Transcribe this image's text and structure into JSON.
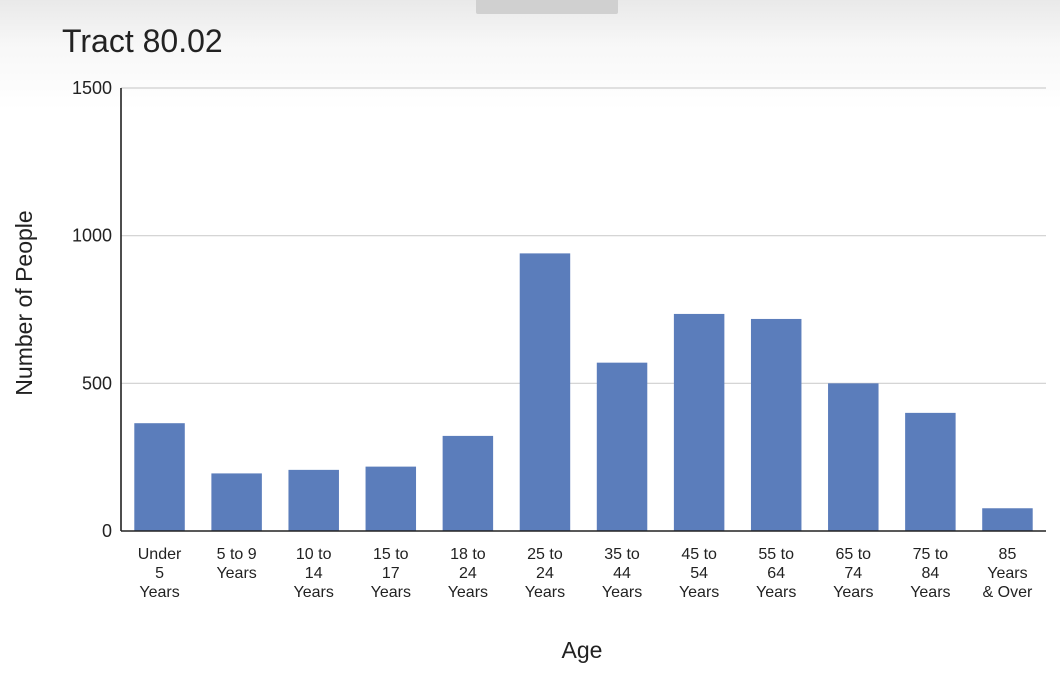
{
  "chart_data": {
    "type": "bar",
    "title": "Tract 80.02",
    "xlabel": "Age",
    "ylabel": "Number of People",
    "ylim": [
      0,
      1500
    ],
    "yticks": [
      0,
      500,
      1000,
      1500
    ],
    "grid": true,
    "bar_color": "#5b7dbb",
    "categories": [
      "Under 5 Years",
      "5 to 9 Years",
      "10 to 14 Years",
      "15 to 17 Years",
      "18 to 24 Years",
      "25 to 24 Years",
      "35 to 44 Years",
      "45 to 54 Years",
      "55 to 64 Years",
      "65 to 74 Years",
      "75 to 84 Years",
      "85 Years & Over"
    ],
    "category_lines": [
      [
        "Under",
        "5",
        "Years"
      ],
      [
        "5 to 9",
        "Years"
      ],
      [
        "10 to",
        "14",
        "Years"
      ],
      [
        "15 to",
        "17",
        "Years"
      ],
      [
        "18 to",
        "24",
        "Years"
      ],
      [
        "25 to",
        "24",
        "Years"
      ],
      [
        "35 to",
        "44",
        "Years"
      ],
      [
        "45 to",
        "54",
        "Years"
      ],
      [
        "55 to",
        "64",
        "Years"
      ],
      [
        "65 to",
        "74",
        "Years"
      ],
      [
        "75 to",
        "84",
        "Years"
      ],
      [
        "85",
        "Years",
        "& Over"
      ]
    ],
    "values": [
      365,
      195,
      207,
      218,
      322,
      940,
      570,
      735,
      718,
      500,
      400,
      77
    ]
  }
}
